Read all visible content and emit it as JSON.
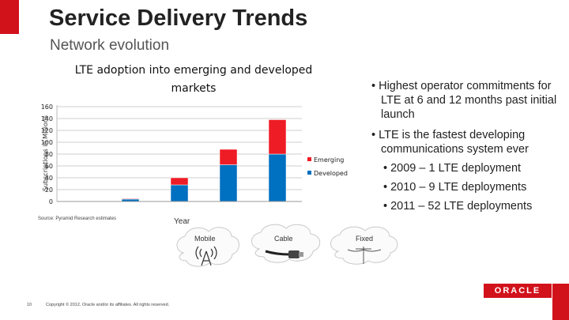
{
  "slide": {
    "title": "Service Delivery Trends",
    "subtitle": "Network evolution",
    "bullets": [
      "• Highest operator commitments for LTE at 6 and 12 months past initial launch",
      "• LTE is the fastest developing communications system ever",
      "• 2009 – 1 LTE deployment",
      "• 2010 – 9 LTE deployments",
      "• 2011 – 52 LTE deployments"
    ],
    "source": "Source: Pyramid Research estimates",
    "clouds": {
      "mobile": "Mobile",
      "cable": "Cable",
      "fixed": "Fixed"
    },
    "footer": {
      "page_number": "10",
      "copyright": "Copyright © 2012, Oracle and/or its affiliates. All rights reserved."
    },
    "logo_text": "ORACLE"
  },
  "colors": {
    "accent": "#d2121b",
    "emerging": "#ee1c25",
    "developed": "#0070c0"
  },
  "chart_data": {
    "type": "bar",
    "stacked": true,
    "title_lines": [
      "LTE adoption into emerging and developed",
      "markets"
    ],
    "xlabel": "Year",
    "ylabel": "Subscriptions in Millions",
    "ylim": [
      0,
      160
    ],
    "yticks": [
      0,
      20,
      40,
      60,
      80,
      100,
      120,
      140,
      160
    ],
    "categories": [
      "",
      "",
      "",
      "",
      ""
    ],
    "series": [
      {
        "name": "Developed",
        "values": [
          0,
          4,
          28,
          62,
          80
        ]
      },
      {
        "name": "Emerging",
        "values": [
          0,
          1,
          12,
          26,
          58
        ]
      }
    ],
    "legend": [
      "Emerging",
      "Developed"
    ],
    "legend_position": "right"
  }
}
